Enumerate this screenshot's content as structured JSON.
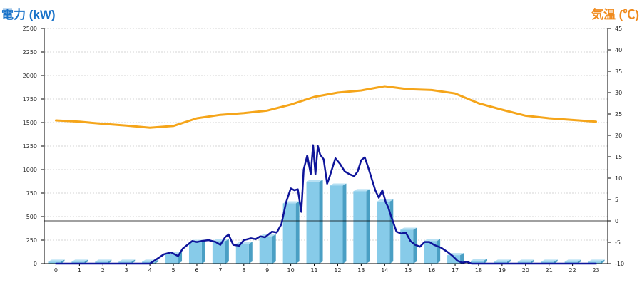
{
  "chart_data": {
    "type": "bar+line",
    "left_axis_title": "電力 (kW)",
    "right_axis_title": "気温 (℃)",
    "left_ylim": [
      0,
      2500
    ],
    "left_ticks": [
      0,
      250,
      500,
      750,
      1000,
      1250,
      1500,
      1750,
      2000,
      2250,
      2500
    ],
    "right_ylim": [
      -10,
      45
    ],
    "right_ticks": [
      -10,
      -5,
      0,
      5,
      10,
      15,
      20,
      25,
      30,
      35,
      40,
      45
    ],
    "categories": [
      "0",
      "1",
      "2",
      "3",
      "4",
      "5",
      "6",
      "7",
      "8",
      "9",
      "10",
      "11",
      "12",
      "13",
      "14",
      "15",
      "16",
      "17",
      "18",
      "19",
      "20",
      "21",
      "22",
      "23"
    ],
    "gridlines": true,
    "colors": {
      "bars": "#87cbe9",
      "bar_side": "#4a9fc4",
      "power_line": "#0e149a",
      "temperature_line": "#f5a51a",
      "left_title": "#1a73c9",
      "right_title": "#f08a1c"
    },
    "bars": {
      "values": [
        20,
        20,
        20,
        20,
        20,
        100,
        230,
        240,
        210,
        290,
        640,
        870,
        830,
        770,
        660,
        360,
        240,
        90,
        30,
        20,
        20,
        20,
        20,
        20
      ]
    },
    "power_line": {
      "x": [
        0,
        1,
        2,
        3,
        4,
        4.3,
        4.6,
        4.9,
        5.2,
        5.4,
        5.6,
        5.8,
        6.0,
        6.2,
        6.5,
        6.8,
        7.0,
        7.2,
        7.35,
        7.55,
        7.8,
        8.0,
        8.3,
        8.5,
        8.7,
        8.9,
        9.0,
        9.2,
        9.4,
        9.6,
        9.8,
        10.0,
        10.15,
        10.3,
        10.45,
        10.55,
        10.7,
        10.85,
        10.95,
        11.05,
        11.15,
        11.25,
        11.4,
        11.55,
        11.65,
        11.75,
        11.9,
        12.1,
        12.3,
        12.5,
        12.7,
        12.85,
        13.0,
        13.15,
        13.3,
        13.45,
        13.6,
        13.75,
        13.9,
        14.05,
        14.15,
        14.25,
        14.35,
        14.5,
        14.7,
        14.9,
        15.1,
        15.3,
        15.5,
        15.7,
        15.9,
        16.1,
        16.4,
        16.7,
        16.9,
        17.1,
        17.3,
        17.5,
        17.7,
        17.9,
        18.1,
        18.5,
        19,
        20,
        21,
        22,
        23
      ],
      "values": [
        0,
        0,
        0,
        0,
        0,
        50,
        100,
        120,
        80,
        160,
        200,
        240,
        230,
        240,
        250,
        230,
        200,
        280,
        310,
        200,
        190,
        250,
        270,
        260,
        290,
        280,
        300,
        340,
        330,
        420,
        650,
        800,
        780,
        790,
        550,
        1000,
        1150,
        950,
        1260,
        950,
        1250,
        1160,
        1110,
        850,
        920,
        1000,
        1120,
        1060,
        980,
        950,
        930,
        980,
        1100,
        1130,
        1020,
        900,
        780,
        700,
        780,
        650,
        600,
        520,
        450,
        340,
        320,
        330,
        240,
        200,
        180,
        230,
        230,
        200,
        170,
        120,
        80,
        30,
        10,
        20,
        0,
        0,
        0,
        0,
        0,
        0,
        0,
        0,
        0
      ]
    },
    "temperature_line": {
      "x": [
        0,
        1,
        2,
        3,
        4,
        5,
        6,
        7,
        8,
        9,
        10,
        11,
        12,
        13,
        14,
        15,
        16,
        17,
        18,
        19,
        20,
        21,
        22,
        23
      ],
      "values": [
        23.5,
        23.2,
        22.7,
        22.3,
        21.8,
        22.2,
        24.0,
        24.8,
        25.2,
        25.8,
        27.2,
        29.0,
        30.0,
        30.5,
        31.5,
        30.8,
        30.6,
        29.8,
        27.5,
        26.0,
        24.6,
        24.0,
        23.6,
        23.2
      ]
    }
  }
}
